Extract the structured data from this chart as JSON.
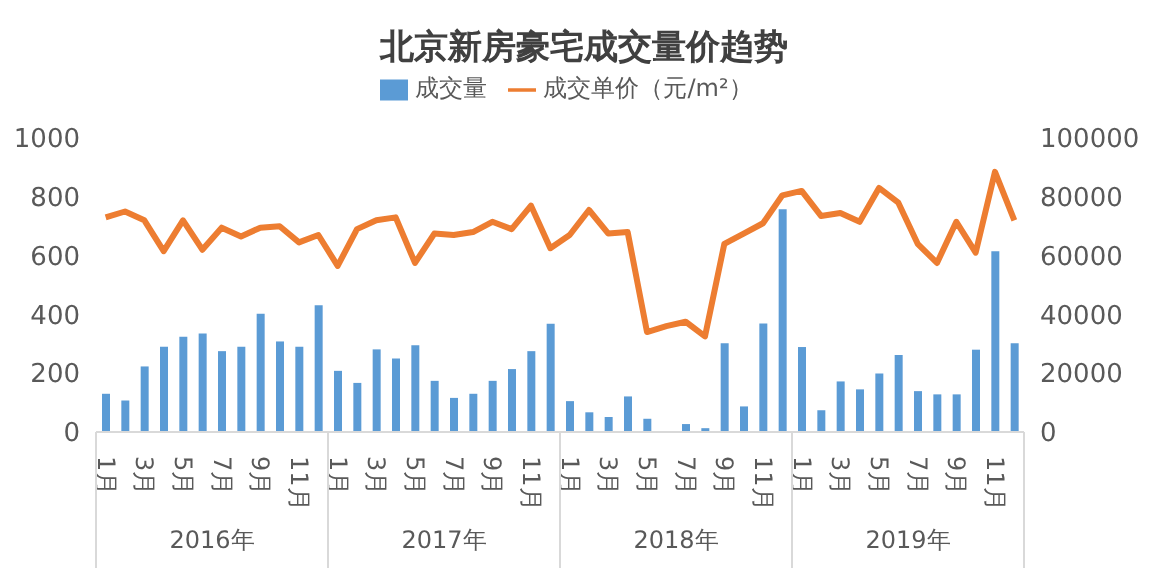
{
  "chart_data": {
    "type": "bar",
    "title": "北京新房豪宅成交量价趋势",
    "categories": [
      "1月",
      null,
      "3月",
      null,
      "5月",
      null,
      "7月",
      null,
      "9月",
      null,
      "11月",
      null,
      "1月",
      null,
      "3月",
      null,
      "5月",
      null,
      "7月",
      null,
      "9月",
      null,
      "11月",
      null,
      "1月",
      null,
      "3月",
      null,
      "5月",
      null,
      "7月",
      null,
      "9月",
      null,
      "11月",
      null,
      "1月",
      null,
      "3月",
      null,
      "5月",
      null,
      "7月",
      null,
      "9月",
      null,
      "11月",
      null
    ],
    "series": [
      {
        "name": "成交量",
        "color": "#5b9bd5",
        "values": [
          130,
          107,
          223,
          290,
          324,
          335,
          275,
          290,
          402,
          308,
          290,
          431,
          208,
          167,
          281,
          250,
          295,
          174,
          116,
          130,
          174,
          214,
          275,
          368,
          105,
          67,
          51,
          121,
          45,
          0,
          27,
          13,
          302,
          87,
          369,
          758,
          289,
          74,
          172,
          145,
          199,
          262,
          139,
          128,
          128,
          280,
          615,
          302
        ]
      },
      {
        "name": "成交单价（元/m²）",
        "type": "line",
        "axis": "y2",
        "color": "#ed7d31",
        "values": [
          73000,
          75000,
          72000,
          61500,
          72000,
          62000,
          69500,
          66500,
          69500,
          70000,
          64500,
          67000,
          56500,
          69000,
          72000,
          73000,
          57500,
          67500,
          67000,
          68000,
          71500,
          69000,
          77000,
          62500,
          67000,
          75500,
          67500,
          68000,
          34000,
          36000,
          37500,
          32500,
          64000,
          67500,
          71000,
          80500,
          82000,
          73500,
          74500,
          71500,
          83000,
          78000,
          64000,
          57500,
          71500,
          61000,
          88500,
          72000
        ]
      }
    ],
    "ylim": [
      0,
      1000
    ],
    "yticks": [
      0,
      200,
      400,
      600,
      800,
      1000
    ],
    "y2lim": [
      0,
      100000
    ],
    "y2ticks": [
      0,
      20000,
      40000,
      60000,
      80000,
      100000
    ],
    "annotations": [
      "2016年",
      "2017年",
      "2018年",
      "2019年"
    ],
    "legend": "top",
    "grid": false
  }
}
